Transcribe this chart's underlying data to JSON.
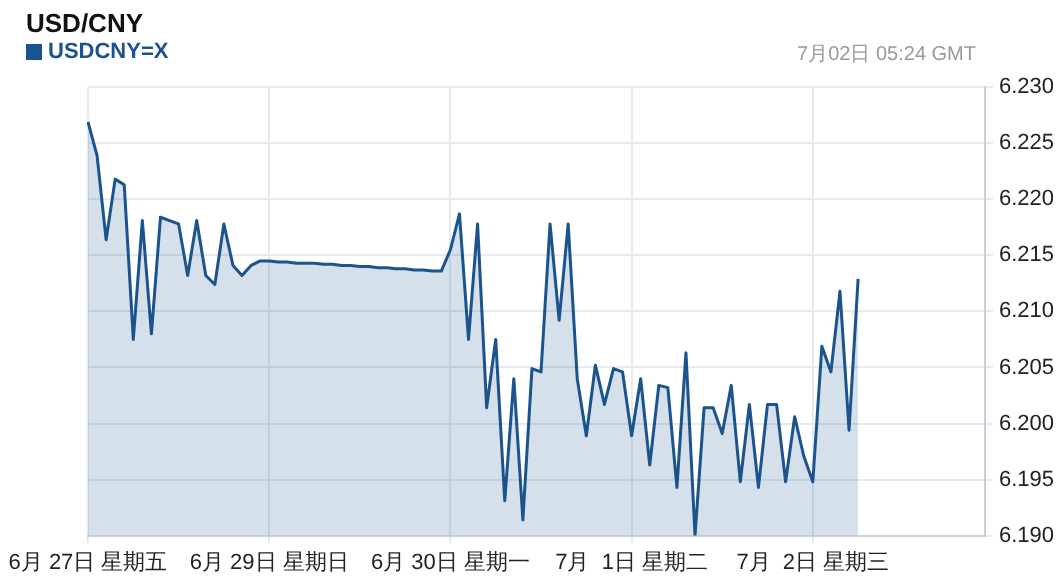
{
  "chart_data": {
    "type": "area",
    "title": "USD/CNY",
    "annotations": [
      "7月02日 05:24 GMT"
    ],
    "categories": [
      "6月 27日 星期五",
      null,
      null,
      null,
      null,
      null,
      null,
      null,
      null,
      null,
      null,
      null,
      null,
      null,
      null,
      null,
      null,
      null,
      null,
      null,
      "6月 29日 星期日",
      null,
      null,
      null,
      null,
      null,
      null,
      null,
      null,
      null,
      null,
      null,
      null,
      null,
      null,
      null,
      null,
      null,
      null,
      null,
      "6月 30日 星期一",
      null,
      null,
      null,
      null,
      null,
      null,
      null,
      null,
      null,
      null,
      null,
      null,
      null,
      null,
      null,
      null,
      null,
      null,
      null,
      "7月  1日 星期二",
      null,
      null,
      null,
      null,
      null,
      null,
      null,
      null,
      null,
      null,
      null,
      null,
      null,
      null,
      null,
      null,
      null,
      null,
      null,
      "7月  2日 星期三",
      null,
      null,
      null,
      null,
      null,
      null,
      null,
      null,
      null,
      null,
      null,
      null,
      null,
      null,
      null,
      null,
      null,
      null,
      null
    ],
    "series": [
      {
        "name": "USDCNY=X",
        "color": "#1b538c",
        "values": [
          6.2269,
          6.2239,
          6.2164,
          6.2218,
          6.2213,
          6.2075,
          6.2181,
          6.208,
          6.2184,
          6.2181,
          6.2178,
          6.2132,
          6.2181,
          6.2132,
          6.2124,
          6.2178,
          6.2141,
          6.2132,
          6.2141,
          6.2145,
          6.2145,
          6.2144,
          6.2144,
          6.2143,
          6.2143,
          6.2143,
          6.2142,
          6.2142,
          6.2141,
          6.2141,
          6.214,
          6.214,
          6.2139,
          6.2139,
          6.2138,
          6.2138,
          6.2137,
          6.2137,
          6.2136,
          6.2136,
          6.2155,
          6.2187,
          6.2075,
          6.2178,
          6.2014,
          6.2075,
          6.1931,
          6.204,
          6.1914,
          6.2049,
          6.2046,
          6.2178,
          6.2092,
          6.2178,
          6.204,
          6.1989,
          6.2052,
          6.2017,
          6.2049,
          6.2046,
          6.1989,
          6.204,
          6.1963,
          6.2034,
          6.2032,
          6.1943,
          6.2063,
          6.19,
          6.2014,
          6.2014,
          6.1991,
          6.2034,
          6.1948,
          6.2017,
          6.1943,
          6.2017,
          6.2017,
          6.1948,
          6.2006,
          6.1971,
          6.1948,
          6.2069,
          6.2046,
          6.2118,
          6.1994,
          6.2129,
          null,
          null,
          null,
          null,
          null,
          null,
          null,
          null,
          null,
          null,
          null,
          null,
          null,
          null
        ]
      }
    ],
    "ylim": [
      6.19,
      6.23
    ],
    "yticks": [
      {
        "value": 6.19,
        "label": "6.190"
      },
      6.195,
      {
        "value": 6.2,
        "label": "6.200"
      },
      6.205,
      {
        "value": 6.21,
        "label": "6.210"
      },
      6.215,
      {
        "value": 6.22,
        "label": "6.220"
      },
      6.225,
      {
        "value": 6.23,
        "label": "6.230"
      }
    ],
    "grid": true,
    "legend": "top left",
    "marker": "none",
    "line_style": "solid"
  }
}
